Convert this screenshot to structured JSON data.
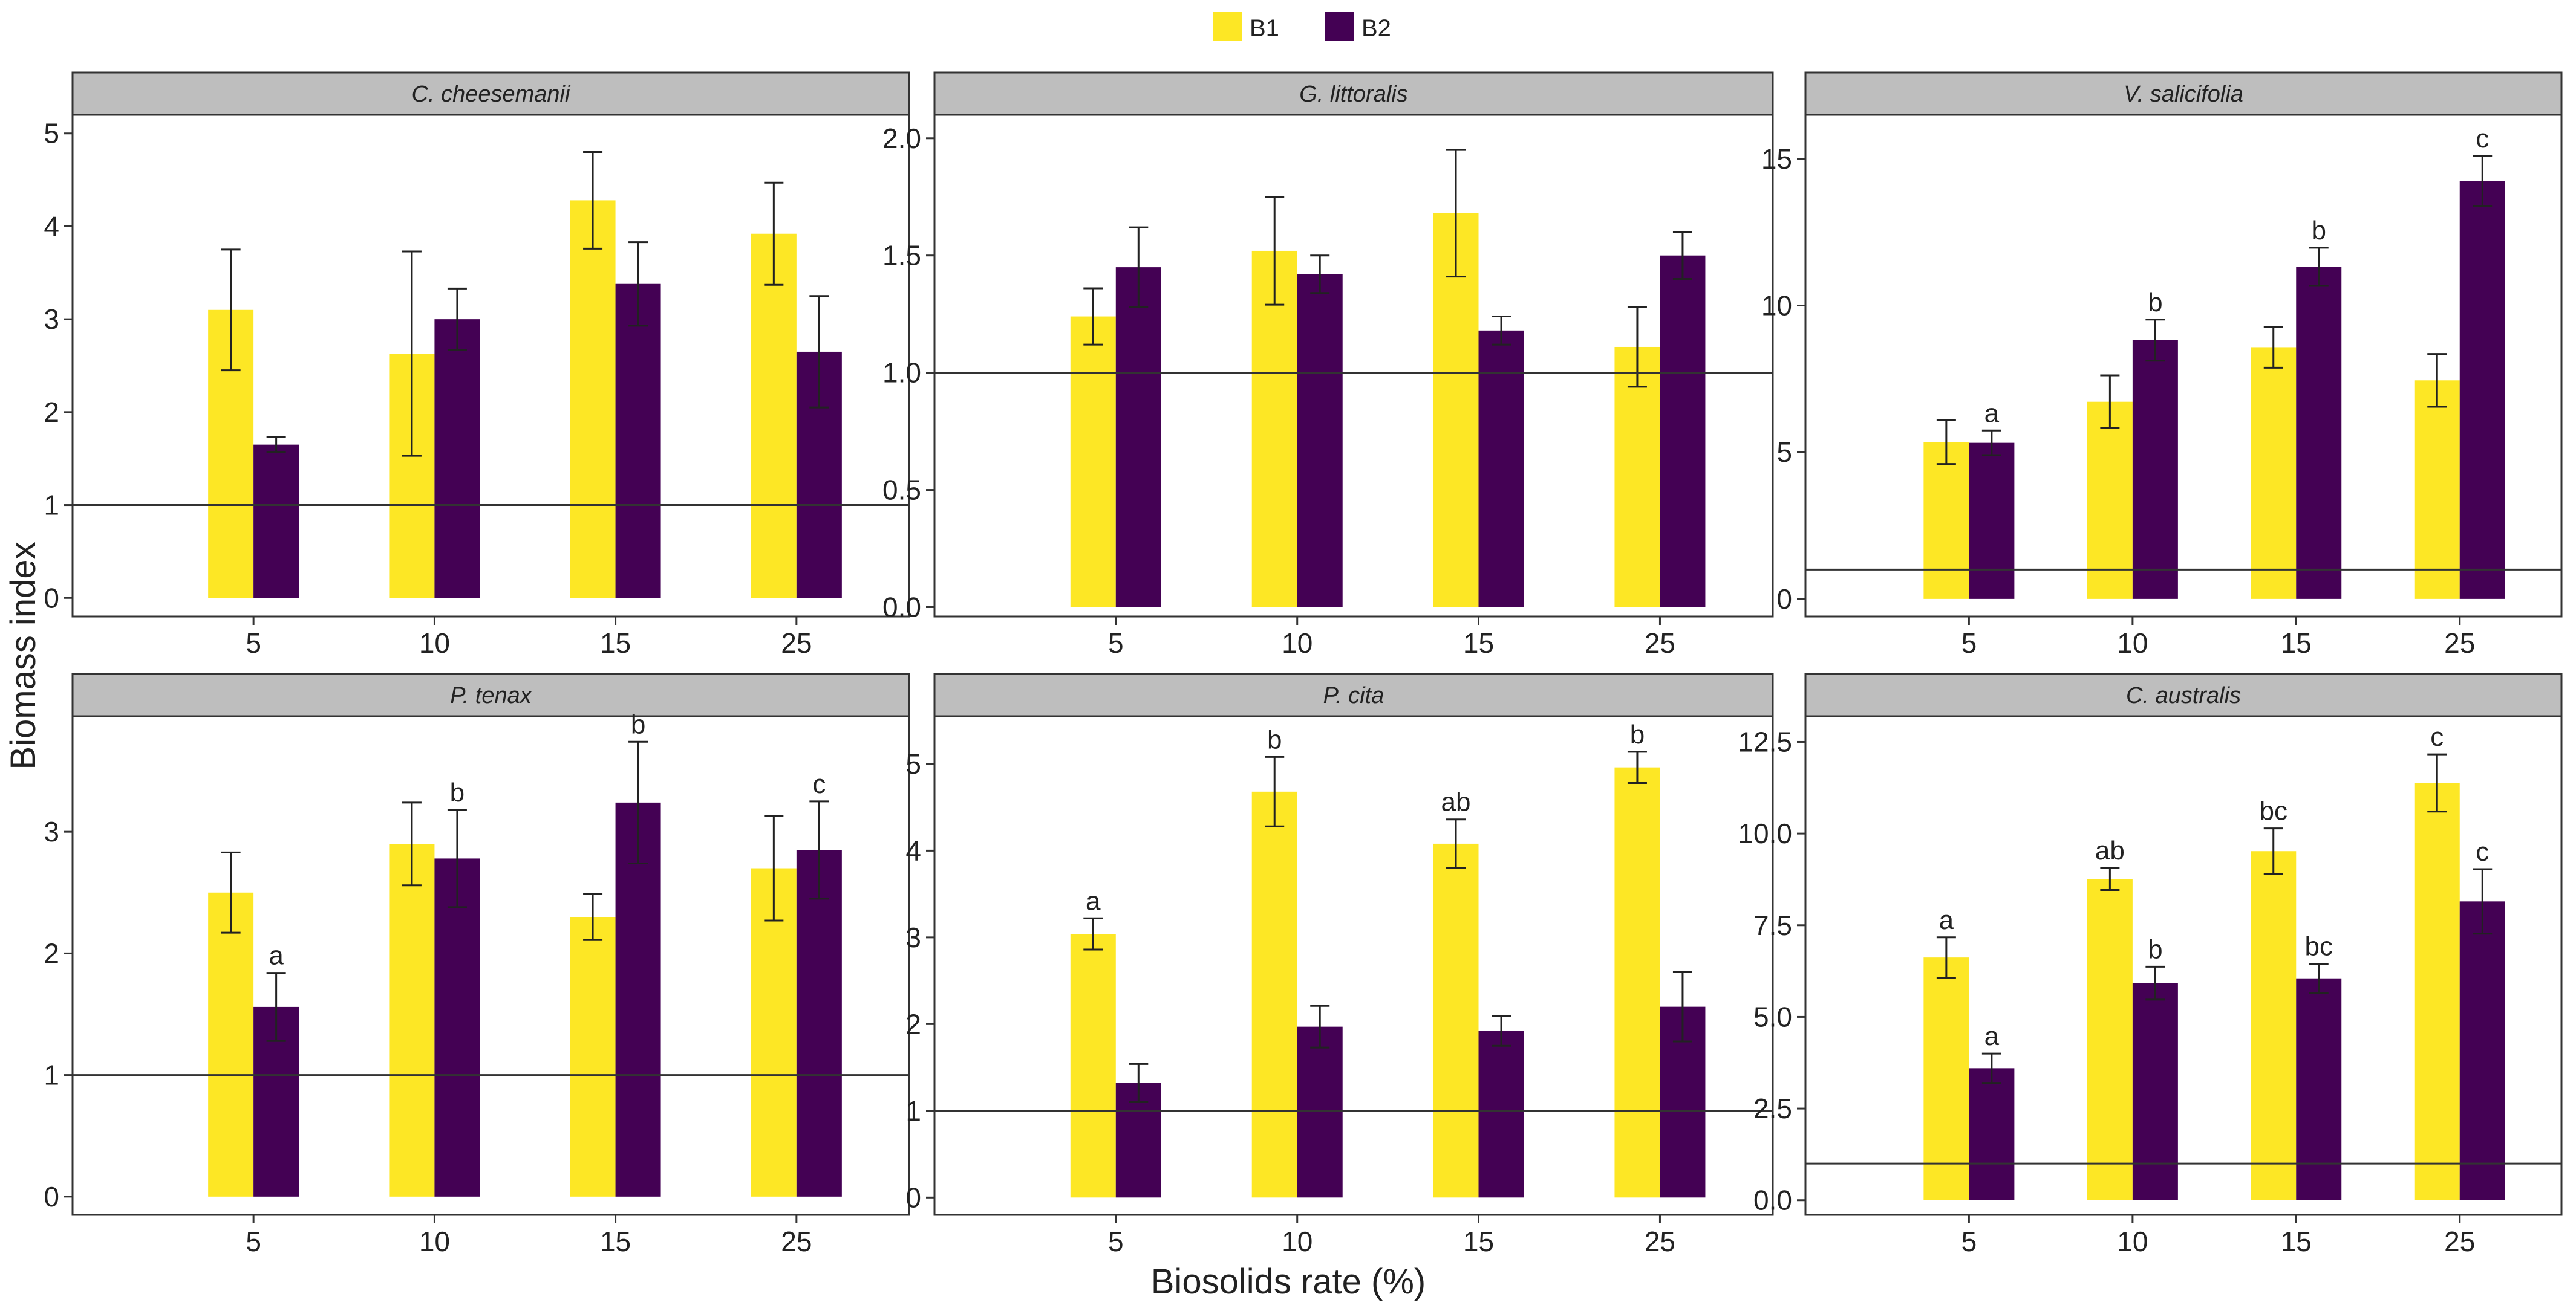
{
  "colors": {
    "B1": "#FDE725",
    "B2": "#440154",
    "strip": "#BEBEBE",
    "border": "#333333",
    "reference_line": "#333333",
    "error_bar": "#222222"
  },
  "legend": {
    "placement": "top-center",
    "items": [
      {
        "key": "B1",
        "label": "B1"
      },
      {
        "key": "B2",
        "label": "B2"
      }
    ]
  },
  "axes": {
    "xlabel": "Biosolids rate (%)",
    "ylabel": "Biomass index"
  },
  "chart_data": [
    {
      "type": "bar",
      "title": "C. cheesemanii",
      "categories": [
        "5",
        "10",
        "15",
        "25"
      ],
      "ylim": [
        -0.2,
        5.2
      ],
      "yticks": [
        "0",
        "1",
        "2",
        "3",
        "4",
        "5"
      ],
      "reference_line": 1,
      "series": [
        {
          "name": "B1",
          "values": [
            3.1,
            2.63,
            4.28,
            3.92
          ],
          "errors": [
            0.65,
            1.1,
            0.52,
            0.55
          ],
          "letters": [
            "",
            "",
            "",
            ""
          ]
        },
        {
          "name": "B2",
          "values": [
            1.65,
            3.0,
            3.38,
            2.65
          ],
          "errors": [
            0.08,
            0.33,
            0.45,
            0.6
          ],
          "letters": [
            "",
            "",
            "",
            ""
          ]
        }
      ]
    },
    {
      "type": "bar",
      "title": "G. littoralis",
      "categories": [
        "5",
        "10",
        "15",
        "25"
      ],
      "ylim": [
        -0.04,
        2.1
      ],
      "yticks": [
        "0.0",
        "0.5",
        "1.0",
        "1.5",
        "2.0"
      ],
      "reference_line": 1,
      "series": [
        {
          "name": "B1",
          "values": [
            1.24,
            1.52,
            1.68,
            1.11
          ],
          "errors": [
            0.12,
            0.23,
            0.27,
            0.17
          ],
          "letters": [
            "",
            "",
            "",
            ""
          ]
        },
        {
          "name": "B2",
          "values": [
            1.45,
            1.42,
            1.18,
            1.5
          ],
          "errors": [
            0.17,
            0.08,
            0.06,
            0.1
          ],
          "letters": [
            "",
            "",
            "",
            ""
          ]
        }
      ]
    },
    {
      "type": "bar",
      "title": "V. salicifolia",
      "categories": [
        "5",
        "10",
        "15",
        "25"
      ],
      "ylim": [
        -0.6,
        16.5
      ],
      "yticks": [
        "0",
        "5",
        "10",
        "15"
      ],
      "reference_line": 1,
      "series": [
        {
          "name": "B1",
          "values": [
            5.35,
            6.72,
            8.58,
            7.45
          ],
          "errors": [
            0.75,
            0.9,
            0.7,
            0.9
          ],
          "letters": [
            "",
            "",
            "",
            ""
          ]
        },
        {
          "name": "B2",
          "values": [
            5.32,
            8.82,
            11.32,
            14.25
          ],
          "errors": [
            0.42,
            0.7,
            0.65,
            0.85
          ],
          "letters": [
            "a",
            "b",
            "b",
            "c"
          ]
        }
      ]
    },
    {
      "type": "bar",
      "title": "P. tenax",
      "categories": [
        "5",
        "10",
        "15",
        "25"
      ],
      "ylim": [
        -0.15,
        3.95
      ],
      "yticks": [
        "0",
        "1",
        "2",
        "3"
      ],
      "reference_line": 1,
      "series": [
        {
          "name": "B1",
          "values": [
            2.5,
            2.9,
            2.3,
            2.7
          ],
          "errors": [
            0.33,
            0.34,
            0.19,
            0.43
          ],
          "letters": [
            "",
            "",
            "",
            ""
          ]
        },
        {
          "name": "B2",
          "values": [
            1.56,
            2.78,
            3.24,
            2.85
          ],
          "errors": [
            0.28,
            0.4,
            0.5,
            0.4
          ],
          "letters": [
            "a",
            "b",
            "b",
            "c"
          ]
        }
      ]
    },
    {
      "type": "bar",
      "title": "P. cita",
      "categories": [
        "5",
        "10",
        "15",
        "25"
      ],
      "ylim": [
        -0.2,
        5.55
      ],
      "yticks": [
        "0",
        "1",
        "2",
        "3",
        "4",
        "5"
      ],
      "reference_line": 1,
      "series": [
        {
          "name": "B1",
          "values": [
            3.04,
            4.68,
            4.08,
            4.96
          ],
          "errors": [
            0.18,
            0.4,
            0.28,
            0.18
          ],
          "letters": [
            "a",
            "b",
            "ab",
            "b"
          ]
        },
        {
          "name": "B2",
          "values": [
            1.32,
            1.97,
            1.92,
            2.2
          ],
          "errors": [
            0.22,
            0.24,
            0.17,
            0.4
          ],
          "letters": [
            "",
            "",
            "",
            ""
          ]
        }
      ]
    },
    {
      "type": "bar",
      "title": "C. australis",
      "categories": [
        "5",
        "10",
        "15",
        "25"
      ],
      "ylim": [
        -0.4,
        13.2
      ],
      "yticks": [
        "0.0",
        "2.5",
        "5.0",
        "7.5",
        "10.0",
        "12.5"
      ],
      "reference_line": 1,
      "series": [
        {
          "name": "B1",
          "values": [
            6.62,
            8.76,
            9.52,
            11.38
          ],
          "errors": [
            0.55,
            0.3,
            0.62,
            0.78
          ],
          "letters": [
            "a",
            "ab",
            "bc",
            "c"
          ]
        },
        {
          "name": "B2",
          "values": [
            3.6,
            5.92,
            6.05,
            8.15
          ],
          "errors": [
            0.4,
            0.45,
            0.4,
            0.88
          ],
          "letters": [
            "a",
            "b",
            "bc",
            "c"
          ]
        }
      ]
    }
  ]
}
